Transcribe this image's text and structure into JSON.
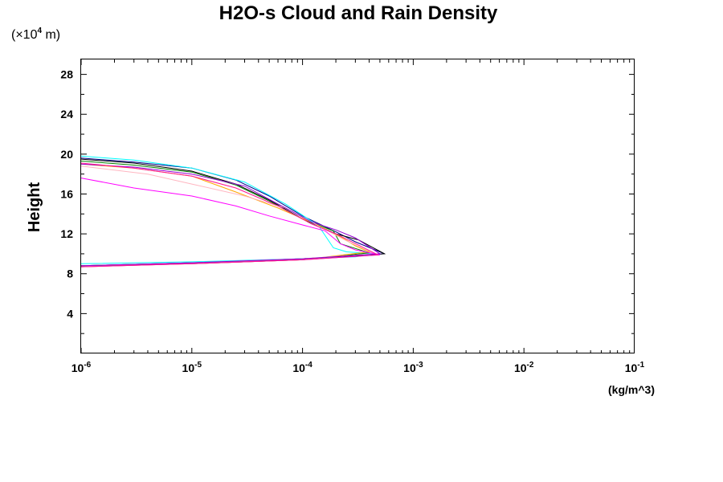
{
  "chart_data": {
    "type": "line",
    "title": "H2O-s Cloud and Rain Density",
    "yunit_prefix": "(×10",
    "yunit_exp": "4",
    "yunit_suffix": " m)",
    "ylabel": "Height",
    "xunit": "(kg/m^3)",
    "xscale": "log",
    "xlim": [
      1e-06,
      0.1
    ],
    "ylim": [
      0,
      29.5
    ],
    "grid": false,
    "legend": "none",
    "xticks": [
      {
        "base": "10",
        "exp": "-6",
        "v": 1e-06
      },
      {
        "base": "10",
        "exp": "-5",
        "v": 1e-05
      },
      {
        "base": "10",
        "exp": "-4",
        "v": 0.0001
      },
      {
        "base": "10",
        "exp": "-3",
        "v": 0.001
      },
      {
        "base": "10",
        "exp": "-2",
        "v": 0.01
      },
      {
        "base": "10",
        "exp": "-1",
        "v": 0.1
      }
    ],
    "yticks": [
      "4",
      "8",
      "12",
      "16",
      "20",
      "24",
      "28"
    ],
    "series": [
      {
        "color": "#00008b",
        "upper": [
          [
            1e-06,
            19.6
          ],
          [
            3e-06,
            19.2
          ],
          [
            1e-05,
            18.6
          ],
          [
            2.5e-05,
            17.4
          ],
          [
            5e-05,
            15.8
          ],
          [
            0.0001,
            13.8
          ],
          [
            0.0002,
            12.2
          ],
          [
            0.0003,
            11.2
          ],
          [
            0.00045,
            10.4
          ],
          [
            0.00055,
            10.0
          ]
        ],
        "lower": [
          [
            1e-06,
            8.8
          ],
          [
            1e-05,
            9.1
          ],
          [
            0.0001,
            9.5
          ],
          [
            0.0003,
            9.8
          ],
          [
            0.00055,
            10.0
          ]
        ]
      },
      {
        "color": "#000000",
        "upper": [
          [
            1e-06,
            19.5
          ],
          [
            3e-06,
            19.1
          ],
          [
            1e-05,
            18.3
          ],
          [
            2.5e-05,
            17.0
          ],
          [
            5e-05,
            15.4
          ],
          [
            0.0001,
            13.5
          ],
          [
            0.0002,
            12.0
          ],
          [
            0.00032,
            11.4
          ],
          [
            0.00055,
            10.0
          ]
        ],
        "lower": [
          [
            1e-06,
            8.8
          ],
          [
            1e-05,
            9.1
          ],
          [
            0.0001,
            9.5
          ],
          [
            0.0003,
            9.8
          ],
          [
            0.00055,
            10.0
          ]
        ]
      },
      {
        "color": "#00ffff",
        "upper": [
          [
            1e-06,
            19.8
          ],
          [
            3e-06,
            19.4
          ],
          [
            1e-05,
            18.6
          ],
          [
            3e-05,
            17.2
          ],
          [
            7e-05,
            15.0
          ],
          [
            0.00014,
            12.8
          ],
          [
            0.00019,
            10.6
          ],
          [
            0.00025,
            10.2
          ],
          [
            0.00045,
            10.0
          ]
        ],
        "lower": [
          [
            1e-06,
            9.0
          ],
          [
            1e-05,
            9.2
          ],
          [
            0.0001,
            9.5
          ],
          [
            0.0003,
            9.7
          ],
          [
            0.00045,
            10.0
          ]
        ]
      },
      {
        "color": "#008000",
        "upper": [
          [
            1e-06,
            19.3
          ],
          [
            3e-06,
            18.9
          ],
          [
            1e-05,
            18.2
          ],
          [
            2.5e-05,
            16.9
          ],
          [
            5e-05,
            15.3
          ],
          [
            0.0001,
            13.5
          ],
          [
            0.00019,
            12.3
          ],
          [
            0.00022,
            11.0
          ],
          [
            0.0004,
            10.1
          ]
        ],
        "lower": [
          [
            1e-06,
            8.8
          ],
          [
            1e-05,
            9.0
          ],
          [
            0.0001,
            9.4
          ],
          [
            0.0004,
            10.1
          ]
        ]
      },
      {
        "color": "#ffa500",
        "upper": [
          [
            1e-06,
            19.0
          ],
          [
            3e-06,
            18.6
          ],
          [
            1e-05,
            17.8
          ],
          [
            2.5e-05,
            16.2
          ],
          [
            6e-05,
            14.6
          ],
          [
            0.00013,
            13.0
          ],
          [
            0.00023,
            11.6
          ],
          [
            0.0003,
            10.8
          ],
          [
            0.0004,
            10.2
          ]
        ],
        "lower": [
          [
            1e-06,
            8.7
          ],
          [
            1e-05,
            9.0
          ],
          [
            0.0001,
            9.4
          ],
          [
            0.0004,
            10.2
          ]
        ]
      },
      {
        "color": "#ffb6c1",
        "upper": [
          [
            1e-06,
            18.8
          ],
          [
            4e-06,
            18.0
          ],
          [
            1e-05,
            17.0
          ],
          [
            3e-05,
            15.8
          ],
          [
            7e-05,
            14.6
          ],
          [
            0.00015,
            12.6
          ],
          [
            0.00025,
            11.3
          ],
          [
            0.00045,
            10.0
          ]
        ],
        "lower": [
          [
            1e-06,
            8.8
          ],
          [
            1e-05,
            9.1
          ],
          [
            0.0001,
            9.5
          ],
          [
            0.00045,
            10.0
          ]
        ]
      },
      {
        "color": "#9400d3",
        "upper": [
          [
            1e-06,
            19.0
          ],
          [
            3e-06,
            18.7
          ],
          [
            1e-05,
            18.0
          ],
          [
            3e-05,
            16.8
          ],
          [
            6e-05,
            15.0
          ],
          [
            0.00012,
            13.2
          ],
          [
            0.0002,
            12.4
          ],
          [
            0.0003,
            11.6
          ],
          [
            0.0005,
            10.0
          ]
        ],
        "lower": [
          [
            1e-06,
            8.8
          ],
          [
            1e-05,
            9.1
          ],
          [
            0.0001,
            9.5
          ],
          [
            0.0005,
            10.0
          ]
        ]
      },
      {
        "color": "#ff00ff",
        "upper": [
          [
            1e-06,
            17.6
          ],
          [
            3e-06,
            16.6
          ],
          [
            1e-05,
            15.8
          ],
          [
            2.5e-05,
            14.8
          ],
          [
            5e-05,
            13.8
          ],
          [
            0.0001,
            12.9
          ],
          [
            0.00016,
            12.3
          ],
          [
            0.00022,
            11.0
          ],
          [
            0.0003,
            10.4
          ],
          [
            0.0005,
            9.9
          ]
        ],
        "lower": [
          [
            1e-06,
            8.7
          ],
          [
            1e-05,
            9.0
          ],
          [
            0.0001,
            9.4
          ],
          [
            0.0005,
            9.9
          ]
        ]
      },
      {
        "color": "#ff1493",
        "upper": [
          [
            1e-06,
            19.1
          ],
          [
            3e-06,
            18.6
          ],
          [
            1e-05,
            17.8
          ],
          [
            2.5e-05,
            16.6
          ],
          [
            6e-05,
            14.8
          ],
          [
            0.00012,
            13.0
          ],
          [
            0.0002,
            12.0
          ],
          [
            0.00048,
            9.9
          ]
        ],
        "lower": [
          [
            1e-06,
            8.7
          ],
          [
            1e-05,
            9.0
          ],
          [
            0.0001,
            9.4
          ],
          [
            0.00048,
            9.9
          ]
        ]
      }
    ]
  }
}
